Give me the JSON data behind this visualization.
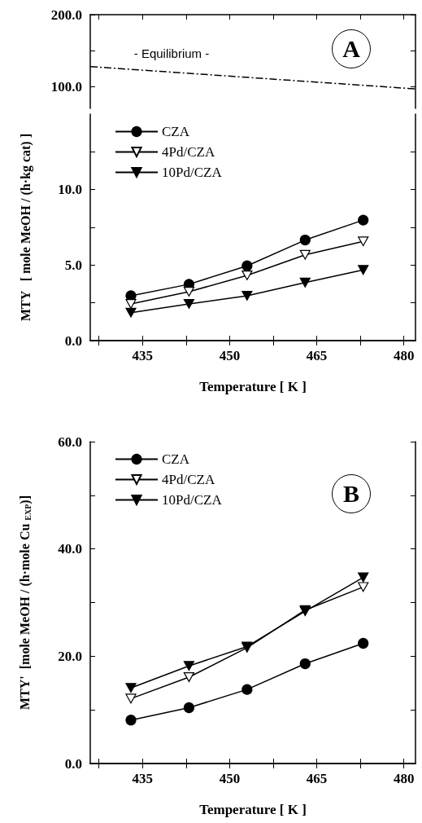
{
  "chart_data": [
    {
      "type": "line",
      "x": [
        426,
        482
      ],
      "xlim": [
        426,
        482
      ],
      "ylim": [
        70,
        200
      ],
      "xticks": [
        {
          "value": 427.5,
          "label": null
        },
        {
          "value": 435,
          "label": null
        },
        {
          "value": 442.5,
          "label": null
        },
        {
          "value": 450,
          "label": null
        },
        {
          "value": 457.5,
          "label": null
        },
        {
          "value": 465,
          "label": null
        },
        {
          "value": 472.5,
          "label": null
        },
        {
          "value": 480,
          "label": null
        }
      ],
      "yticks": [
        {
          "value": 100,
          "label": "100.0"
        },
        {
          "value": 150,
          "label": null
        },
        {
          "value": 200,
          "label": "200.0"
        }
      ],
      "tick_labels": "y",
      "grid": false,
      "legend": false,
      "series": [
        {
          "name": "- Equilibrium -",
          "color": "#000000",
          "values": [
            128,
            97
          ],
          "marker": "none",
          "line_style": "dashed"
        }
      ],
      "annotations": [
        "A"
      ]
    },
    {
      "type": "line",
      "x": [
        433,
        443,
        453,
        463,
        473
      ],
      "xlim": [
        426,
        482
      ],
      "ylim": [
        0,
        15
      ],
      "xlabel": "Temperature [ K ]",
      "ylabel": "MTY   [ mole MeOH / (h·kg cat) ]",
      "xticks": [
        {
          "value": 427.5,
          "label": null
        },
        435,
        {
          "value": 442.5,
          "label": null
        },
        450,
        {
          "value": 457.5,
          "label": null
        },
        465,
        {
          "value": 472.5,
          "label": null
        },
        480
      ],
      "yticks": [
        {
          "value": 0,
          "label": "0.0"
        },
        {
          "value": 2.5,
          "label": null
        },
        {
          "value": 5,
          "label": "5.0"
        },
        {
          "value": 7.5,
          "label": null
        },
        {
          "value": 10,
          "label": "10.0"
        },
        {
          "value": 12.5,
          "label": null
        }
      ],
      "grid": false,
      "legend": "top left",
      "series": [
        {
          "name": "CZA",
          "color": "#000000",
          "marker": "circle",
          "values": [
            2.97,
            3.73,
            4.95,
            6.66,
            7.98
          ]
        },
        {
          "name": "4Pd/CZA",
          "color": "#ffffff",
          "marker": "triangle",
          "values": [
            2.43,
            3.24,
            4.32,
            5.68,
            6.57
          ]
        },
        {
          "name": "10Pd/CZA",
          "color": "#000000",
          "marker": "triangle",
          "values": [
            1.85,
            2.43,
            2.97,
            3.84,
            4.68
          ]
        }
      ]
    },
    {
      "type": "line",
      "x": [
        433,
        443,
        453,
        463,
        473
      ],
      "xlim": [
        426,
        482
      ],
      "ylim": [
        0,
        60
      ],
      "xlabel": "Temperature [ K ]",
      "ylabel": "MTY'  [mole MeOH / (h·mole Cu $_{EXP}$)]",
      "xticks": [
        {
          "value": 427.5,
          "label": null
        },
        435,
        {
          "value": 442.5,
          "label": null
        },
        450,
        {
          "value": 457.5,
          "label": null
        },
        465,
        {
          "value": 472.5,
          "label": null
        },
        480
      ],
      "yticks": [
        {
          "value": 0,
          "label": "0.0"
        },
        {
          "value": 10,
          "label": null
        },
        {
          "value": 20,
          "label": "20.0"
        },
        {
          "value": 30,
          "label": null
        },
        {
          "value": 40,
          "label": "40.0"
        },
        {
          "value": 50,
          "label": null
        },
        {
          "value": 60,
          "label": "60.0"
        }
      ],
      "grid": false,
      "legend": "top left",
      "series": [
        {
          "name": "CZA",
          "color": "#000000",
          "marker": "circle",
          "values": [
            8.1,
            10.4,
            13.8,
            18.6,
            22.4
          ]
        },
        {
          "name": "4Pd/CZA",
          "color": "#ffffff",
          "marker": "triangle",
          "values": [
            12.1,
            16.1,
            21.6,
            28.6,
            32.9
          ]
        },
        {
          "name": "10Pd/CZA",
          "color": "#000000",
          "marker": "triangle",
          "values": [
            14.1,
            18.2,
            21.8,
            28.4,
            34.7
          ]
        }
      ],
      "annotations": [
        "B"
      ]
    }
  ]
}
